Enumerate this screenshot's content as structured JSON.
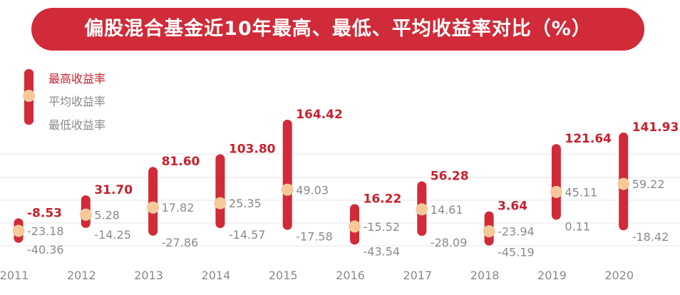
{
  "chart_data": {
    "type": "range-bar",
    "title": "偏股混合基金近10年最高、最低、平均收益率对比（%）",
    "categories": [
      "2011",
      "2012",
      "2013",
      "2014",
      "2015",
      "2016",
      "2017",
      "2018",
      "2019",
      "2020"
    ],
    "series": [
      {
        "name": "最高收益率",
        "values": [
          -8.53,
          31.7,
          81.6,
          103.8,
          164.42,
          16.22,
          56.28,
          3.64,
          121.64,
          141.93
        ]
      },
      {
        "name": "平均收益率",
        "values": [
          -23.18,
          5.28,
          17.82,
          25.35,
          49.03,
          -15.52,
          14.61,
          -23.94,
          45.11,
          59.22
        ]
      },
      {
        "name": "最低收益率",
        "values": [
          -40.36,
          -14.25,
          -27.86,
          -14.57,
          -17.58,
          -43.54,
          -28.09,
          -45.19,
          0.11,
          -18.42
        ]
      }
    ],
    "max_labels": [
      "-8.53",
      "31.70",
      "81.60",
      "103.80",
      "164.42",
      "16.22",
      "56.28",
      "3.64",
      "121.64",
      "141.93"
    ],
    "avg_labels": [
      "-23.18",
      "5.28",
      "17.82",
      "25.35",
      "49.03",
      "-15.52",
      "14.61",
      "-23.94",
      "45.11",
      "59.22"
    ],
    "min_labels": [
      "-40.36",
      "-14.25",
      "-27.86",
      "-14.57",
      "-17.58",
      "-43.54",
      "-28.09",
      "-45.19",
      "0.11",
      "-18.42"
    ],
    "legend_position": "top-left",
    "grid": true,
    "colors": {
      "bar": "#d12a38",
      "avg_dot": "#f7c99a",
      "max_text": "#c8202d",
      "other_text": "#8a8a8a",
      "grid": "#e6e6e6"
    }
  },
  "legend": {
    "max": "最高收益率",
    "avg": "平均收益率",
    "min": "最低收益率"
  }
}
